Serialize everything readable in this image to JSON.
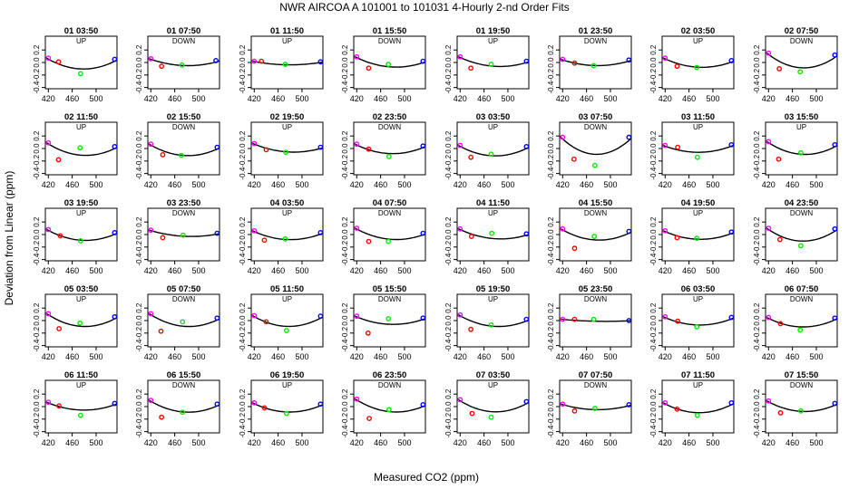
{
  "title": "NWR   AIRCOA A   101001 to 101031   4-Hourly 2-nd Order Fits",
  "xlabel": "Measured CO2 (ppm)",
  "ylabel": "Deviation from Linear (ppm)",
  "chart_data": [
    {
      "type": "scatter",
      "title": "01 03:50",
      "subtitle": "UP",
      "coef": 0.78,
      "points": [
        [
          420,
          0.07
        ],
        [
          437,
          0.01
        ],
        [
          474,
          -0.18
        ],
        [
          531,
          0.05
        ]
      ]
    },
    {
      "type": "scatter",
      "title": "01 07:50",
      "subtitle": "DOWN",
      "coef": 0.45,
      "points": [
        [
          420,
          0.06
        ],
        [
          438,
          -0.06
        ],
        [
          472,
          -0.04
        ],
        [
          529,
          0.03
        ]
      ]
    },
    {
      "type": "scatter",
      "title": "01 11:50",
      "subtitle": "UP",
      "coef": 0.25,
      "points": [
        [
          420,
          0.02
        ],
        [
          432,
          0.02
        ],
        [
          472,
          -0.03
        ],
        [
          531,
          0.01
        ]
      ]
    },
    {
      "type": "scatter",
      "title": "01 15:50",
      "subtitle": "DOWN",
      "coef": 0.6,
      "points": [
        [
          420,
          0.09
        ],
        [
          440,
          -0.09
        ],
        [
          473,
          -0.03
        ],
        [
          531,
          0.02
        ]
      ]
    },
    {
      "type": "scatter",
      "title": "01 19:50",
      "subtitle": "UP",
      "coef": 0.55,
      "points": [
        [
          420,
          0.09
        ],
        [
          438,
          -0.09
        ],
        [
          472,
          -0.03
        ],
        [
          531,
          0.02
        ]
      ]
    },
    {
      "type": "scatter",
      "title": "01 23:50",
      "subtitle": "DOWN",
      "coef": 0.45,
      "points": [
        [
          420,
          0.05
        ],
        [
          440,
          -0.01
        ],
        [
          472,
          -0.05
        ],
        [
          531,
          0.04
        ]
      ]
    },
    {
      "type": "scatter",
      "title": "02 03:50",
      "subtitle": "UP",
      "coef": 0.6,
      "points": [
        [
          420,
          0.07
        ],
        [
          440,
          -0.06
        ],
        [
          473,
          -0.08
        ],
        [
          531,
          0.03
        ]
      ]
    },
    {
      "type": "scatter",
      "title": "02 07:50",
      "subtitle": "DOWN",
      "coef": 1.05,
      "points": [
        [
          420,
          0.15
        ],
        [
          438,
          -0.1
        ],
        [
          473,
          -0.15
        ],
        [
          531,
          0.12
        ]
      ]
    },
    {
      "type": "scatter",
      "title": "02 11:50",
      "subtitle": "UP",
      "coef": 0.8,
      "points": [
        [
          420,
          0.09
        ],
        [
          437,
          -0.18
        ],
        [
          473,
          0.01
        ],
        [
          531,
          0.03
        ]
      ]
    },
    {
      "type": "scatter",
      "title": "02 15:50",
      "subtitle": "DOWN",
      "coef": 0.75,
      "points": [
        [
          420,
          0.07
        ],
        [
          440,
          -0.1
        ],
        [
          471,
          -0.11
        ],
        [
          531,
          0.02
        ]
      ]
    },
    {
      "type": "scatter",
      "title": "02 19:50",
      "subtitle": "UP",
      "coef": 0.5,
      "points": [
        [
          420,
          0.08
        ],
        [
          440,
          -0.02
        ],
        [
          473,
          -0.06
        ],
        [
          531,
          0.02
        ]
      ]
    },
    {
      "type": "scatter",
      "title": "02 23:50",
      "subtitle": "DOWN",
      "coef": 0.65,
      "points": [
        [
          420,
          0.07
        ],
        [
          440,
          -0.01
        ],
        [
          474,
          -0.13
        ],
        [
          531,
          0.04
        ]
      ]
    },
    {
      "type": "scatter",
      "title": "03 03:50",
      "subtitle": "UP",
      "coef": 0.75,
      "points": [
        [
          420,
          0.05
        ],
        [
          438,
          -0.14
        ],
        [
          472,
          -0.09
        ],
        [
          531,
          0.03
        ]
      ]
    },
    {
      "type": "scatter",
      "title": "03 07:50",
      "subtitle": "DOWN",
      "coef": 1.3,
      "points": [
        [
          420,
          0.18
        ],
        [
          439,
          -0.17
        ],
        [
          474,
          -0.27
        ],
        [
          531,
          0.18
        ]
      ]
    },
    {
      "type": "scatter",
      "title": "03 11:50",
      "subtitle": "UP",
      "coef": 0.55,
      "points": [
        [
          420,
          0.05
        ],
        [
          441,
          0.02
        ],
        [
          474,
          -0.14
        ],
        [
          531,
          0.06
        ]
      ]
    },
    {
      "type": "scatter",
      "title": "03 15:50",
      "subtitle": "UP",
      "coef": 0.85,
      "points": [
        [
          420,
          0.11
        ],
        [
          437,
          -0.17
        ],
        [
          474,
          -0.07
        ],
        [
          531,
          0.06
        ]
      ]
    },
    {
      "type": "scatter",
      "title": "03 19:50",
      "subtitle": "UP",
      "coef": 0.7,
      "points": [
        [
          420,
          0.08
        ],
        [
          440,
          -0.02
        ],
        [
          474,
          -0.1
        ],
        [
          531,
          0.03
        ]
      ]
    },
    {
      "type": "scatter",
      "title": "03 23:50",
      "subtitle": "DOWN",
      "coef": 0.35,
      "points": [
        [
          420,
          0.07
        ],
        [
          440,
          -0.05
        ],
        [
          474,
          -0.01
        ],
        [
          531,
          0.02
        ]
      ]
    },
    {
      "type": "scatter",
      "title": "04 03:50",
      "subtitle": "UP",
      "coef": 0.6,
      "points": [
        [
          420,
          0.06
        ],
        [
          437,
          -0.09
        ],
        [
          472,
          -0.07
        ],
        [
          531,
          0.03
        ]
      ]
    },
    {
      "type": "scatter",
      "title": "04 07:50",
      "subtitle": "DOWN",
      "coef": 0.65,
      "points": [
        [
          420,
          0.1
        ],
        [
          440,
          -0.11
        ],
        [
          473,
          -0.11
        ],
        [
          531,
          0.02
        ]
      ]
    },
    {
      "type": "scatter",
      "title": "04 11:50",
      "subtitle": "UP",
      "coef": 0.55,
      "points": [
        [
          420,
          0.09
        ],
        [
          439,
          -0.03
        ],
        [
          473,
          0.02
        ],
        [
          531,
          0.01
        ]
      ]
    },
    {
      "type": "scatter",
      "title": "04 15:50",
      "subtitle": "DOWN",
      "coef": 0.75,
      "points": [
        [
          420,
          0.09
        ],
        [
          440,
          -0.22
        ],
        [
          473,
          -0.03
        ],
        [
          531,
          0.05
        ]
      ]
    },
    {
      "type": "scatter",
      "title": "04 19:50",
      "subtitle": "UP",
      "coef": 0.6,
      "points": [
        [
          420,
          0.06
        ],
        [
          440,
          -0.05
        ],
        [
          473,
          -0.06
        ],
        [
          531,
          0.04
        ]
      ]
    },
    {
      "type": "scatter",
      "title": "04 23:50",
      "subtitle": "DOWN",
      "coef": 0.95,
      "points": [
        [
          420,
          0.1
        ],
        [
          439,
          -0.08
        ],
        [
          474,
          -0.18
        ],
        [
          531,
          0.09
        ]
      ]
    },
    {
      "type": "scatter",
      "title": "05 03:50",
      "subtitle": "UP",
      "coef": 0.85,
      "points": [
        [
          420,
          0.11
        ],
        [
          438,
          -0.13
        ],
        [
          473,
          -0.04
        ],
        [
          531,
          0.06
        ]
      ]
    },
    {
      "type": "scatter",
      "title": "05 07:50",
      "subtitle": "DOWN",
      "coef": 0.8,
      "points": [
        [
          420,
          0.11
        ],
        [
          437,
          -0.17
        ],
        [
          473,
          -0.02
        ],
        [
          531,
          0.04
        ]
      ]
    },
    {
      "type": "scatter",
      "title": "05 11:50",
      "subtitle": "UP",
      "coef": 0.8,
      "points": [
        [
          420,
          0.08
        ],
        [
          440,
          -0.02
        ],
        [
          474,
          -0.16
        ],
        [
          531,
          0.07
        ]
      ]
    },
    {
      "type": "scatter",
      "title": "05 15:50",
      "subtitle": "DOWN",
      "coef": 0.55,
      "points": [
        [
          420,
          0.07
        ],
        [
          439,
          -0.2
        ],
        [
          473,
          0.03
        ],
        [
          531,
          0.04
        ]
      ]
    },
    {
      "type": "scatter",
      "title": "05 19:50",
      "subtitle": "UP",
      "coef": 0.7,
      "points": [
        [
          420,
          0.09
        ],
        [
          438,
          -0.14
        ],
        [
          472,
          -0.07
        ],
        [
          531,
          0.02
        ]
      ]
    },
    {
      "type": "scatter",
      "title": "05 23:50",
      "subtitle": "DOWN",
      "coef": 0.1,
      "points": [
        [
          420,
          0.02
        ],
        [
          440,
          0.02
        ],
        [
          472,
          0.02
        ],
        [
          531,
          0.0
        ]
      ]
    },
    {
      "type": "scatter",
      "title": "06 03:50",
      "subtitle": "UP",
      "coef": 0.6,
      "points": [
        [
          420,
          0.06
        ],
        [
          441,
          -0.01
        ],
        [
          473,
          -0.1
        ],
        [
          531,
          0.05
        ]
      ]
    },
    {
      "type": "scatter",
      "title": "06 07:50",
      "subtitle": "DOWN",
      "coef": 0.7,
      "points": [
        [
          420,
          0.05
        ],
        [
          440,
          -0.05
        ],
        [
          473,
          -0.15
        ],
        [
          531,
          0.04
        ]
      ]
    },
    {
      "type": "scatter",
      "title": "06 11:50",
      "subtitle": "UP",
      "coef": 0.55,
      "points": [
        [
          420,
          0.07
        ],
        [
          438,
          0.01
        ],
        [
          474,
          -0.14
        ],
        [
          531,
          0.05
        ]
      ]
    },
    {
      "type": "scatter",
      "title": "06 15:50",
      "subtitle": "DOWN",
      "coef": 0.75,
      "points": [
        [
          420,
          0.1
        ],
        [
          438,
          -0.17
        ],
        [
          473,
          -0.09
        ],
        [
          531,
          0.04
        ]
      ]
    },
    {
      "type": "scatter",
      "title": "06 19:50",
      "subtitle": "UP",
      "coef": 0.65,
      "points": [
        [
          420,
          0.06
        ],
        [
          437,
          -0.02
        ],
        [
          474,
          -0.11
        ],
        [
          531,
          0.04
        ]
      ]
    },
    {
      "type": "scatter",
      "title": "06 23:50",
      "subtitle": "DOWN",
      "coef": 0.75,
      "points": [
        [
          420,
          0.12
        ],
        [
          441,
          -0.19
        ],
        [
          474,
          -0.05
        ],
        [
          531,
          0.03
        ]
      ]
    },
    {
      "type": "scatter",
      "title": "07 03:50",
      "subtitle": "UP",
      "coef": 0.85,
      "points": [
        [
          420,
          0.11
        ],
        [
          440,
          -0.11
        ],
        [
          472,
          -0.17
        ],
        [
          531,
          0.08
        ]
      ]
    },
    {
      "type": "scatter",
      "title": "07 07:50",
      "subtitle": "DOWN",
      "coef": 0.4,
      "points": [
        [
          420,
          0.04
        ],
        [
          440,
          -0.07
        ],
        [
          474,
          -0.03
        ],
        [
          531,
          0.03
        ]
      ]
    },
    {
      "type": "scatter",
      "title": "07 11:50",
      "subtitle": "UP",
      "coef": 0.75,
      "points": [
        [
          420,
          0.06
        ],
        [
          440,
          -0.04
        ],
        [
          474,
          -0.14
        ],
        [
          531,
          0.06
        ]
      ]
    },
    {
      "type": "scatter",
      "title": "07 15:50",
      "subtitle": "DOWN",
      "coef": 0.7,
      "points": [
        [
          420,
          0.09
        ],
        [
          440,
          -0.1
        ],
        [
          474,
          -0.07
        ],
        [
          531,
          0.05
        ]
      ]
    }
  ],
  "axis": {
    "xlim": [
      415,
      535
    ],
    "ylim": [
      -0.42,
      0.42
    ],
    "xticks": [
      420,
      460,
      500
    ],
    "yticks": [
      0.2,
      0.0,
      -0.2,
      -0.4
    ],
    "xtick_labels": [
      "420",
      "460",
      "500"
    ],
    "ytick_labels": [
      "0.2",
      "0.0",
      "-0.2",
      "-0.4"
    ]
  },
  "colors": {
    "points": [
      "#ff00ff",
      "#ff0000",
      "#00ee00",
      "#0000ff"
    ],
    "fit": "#000000"
  }
}
